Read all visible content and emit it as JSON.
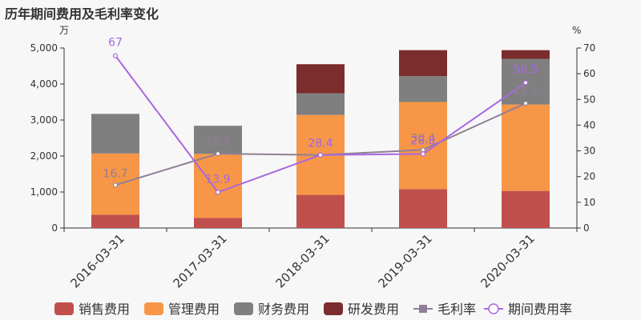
{
  "chart_data": {
    "type": "bar",
    "title": "历年期间费用及毛利率变化",
    "left_unit": "万",
    "right_unit": "%",
    "categories": [
      "2016-03-31",
      "2017-03-31",
      "2018-03-31",
      "2019-03-31",
      "2020-03-31"
    ],
    "ylim_left": [
      0,
      5000
    ],
    "yticks_left": [
      "0",
      "1,000",
      "2,000",
      "3,000",
      "4,000",
      "5,000"
    ],
    "ylim_right": [
      0,
      70
    ],
    "yticks_right": [
      "0",
      "10",
      "20",
      "30",
      "40",
      "50",
      "60",
      "70"
    ],
    "grid": false,
    "legend_position": "bottom",
    "bar_series": [
      {
        "name": "销售费用",
        "color": "#c0504d",
        "values": [
          370,
          280,
          920,
          1080,
          1030
        ]
      },
      {
        "name": "管理费用",
        "color": "#f79646",
        "values": [
          1700,
          1780,
          2220,
          2420,
          2400
        ]
      },
      {
        "name": "财务费用",
        "color": "#7f7f7f",
        "values": [
          1100,
          780,
          600,
          720,
          1270
        ]
      },
      {
        "name": "研发费用",
        "color": "#7b2c2c",
        "values": [
          0,
          0,
          810,
          720,
          240
        ]
      }
    ],
    "line_series": [
      {
        "name": "毛利率",
        "color": "#8f7f96",
        "marker": "square",
        "values": [
          16.7,
          28.9,
          28.4,
          30.4,
          48.5
        ],
        "labels": [
          "16.7",
          "28.9",
          "28.4",
          "30.4",
          "48.5"
        ]
      },
      {
        "name": "期间费用率",
        "color": "#a868e0",
        "marker": "circle",
        "values": [
          67,
          13.9,
          28.4,
          28.8,
          56.5
        ],
        "labels": [
          "67",
          "13.9",
          "28.4",
          "28.8",
          "56.5"
        ]
      }
    ]
  }
}
